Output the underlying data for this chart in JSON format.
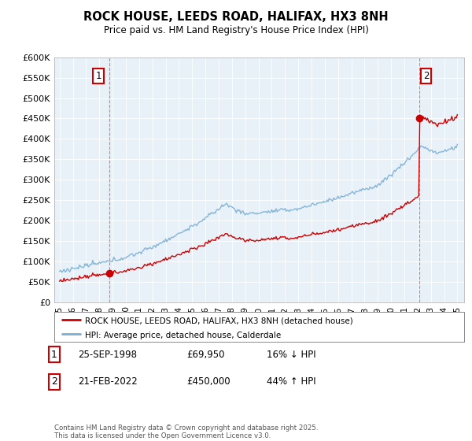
{
  "title": "ROCK HOUSE, LEEDS ROAD, HALIFAX, HX3 8NH",
  "subtitle": "Price paid vs. HM Land Registry's House Price Index (HPI)",
  "legend_line1": "ROCK HOUSE, LEEDS ROAD, HALIFAX, HX3 8NH (detached house)",
  "legend_line2": "HPI: Average price, detached house, Calderdale",
  "annotation1_date": "25-SEP-1998",
  "annotation1_price": 69950,
  "annotation1_price_str": "£69,950",
  "annotation1_hpi": "16% ↓ HPI",
  "annotation2_date": "21-FEB-2022",
  "annotation2_price": 450000,
  "annotation2_price_str": "£450,000",
  "annotation2_hpi": "44% ↑ HPI",
  "footer": "Contains HM Land Registry data © Crown copyright and database right 2025.\nThis data is licensed under the Open Government Licence v3.0.",
  "red_color": "#cc0000",
  "blue_color": "#7ab0d4",
  "plot_bg": "#e8f0f8",
  "background_color": "#ffffff",
  "grid_color": "#ffffff",
  "vline_color": "#e07070",
  "t1_year": 1998.73,
  "t2_year": 2022.13,
  "t1_price": 69950,
  "t2_price": 450000,
  "ylim": [
    0,
    600000
  ],
  "yticks": [
    0,
    50000,
    100000,
    150000,
    200000,
    250000,
    300000,
    350000,
    400000,
    450000,
    500000,
    550000,
    600000
  ],
  "xstart": 1995,
  "xend": 2025
}
